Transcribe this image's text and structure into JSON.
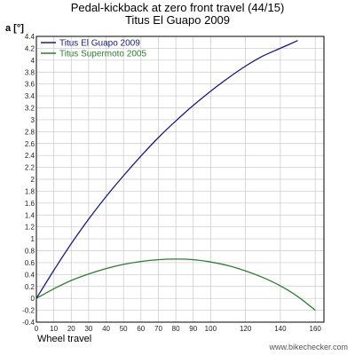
{
  "chart_data": {
    "type": "line",
    "title": "Pedal-kickback at zero front travel (44/15)",
    "subtitle": "Titus El Guapo 2009",
    "ylabel": "a [°]",
    "xlabel": "Wheel travel",
    "xlim": [
      0,
      165
    ],
    "ylim": [
      -0.4,
      4.4
    ],
    "xticks": [
      0,
      10,
      20,
      30,
      40,
      50,
      60,
      70,
      80,
      90,
      100,
      120,
      140,
      160
    ],
    "yticks": [
      -0.4,
      -0.2,
      0,
      0.2,
      0.4,
      0.6,
      0.8,
      1,
      1.2,
      1.4,
      1.6,
      1.8,
      2,
      2.2,
      2.4,
      2.6,
      2.8,
      3,
      3.2,
      3.4,
      3.6,
      3.8,
      4,
      4.2,
      4.4
    ],
    "grid": true,
    "legend_position": "top-left",
    "series": [
      {
        "name": "Titus El Guapo 2009",
        "color": "#1a1a80",
        "x": [
          0,
          10,
          20,
          30,
          40,
          50,
          60,
          70,
          80,
          90,
          100,
          110,
          120,
          130,
          140,
          150
        ],
        "y": [
          0.0,
          0.47,
          0.92,
          1.33,
          1.71,
          2.06,
          2.39,
          2.7,
          2.98,
          3.24,
          3.48,
          3.7,
          3.9,
          4.07,
          4.2,
          4.33
        ]
      },
      {
        "name": "Titus Supermoto 2005",
        "color": "#2e7d32",
        "x": [
          0,
          10,
          20,
          30,
          40,
          50,
          60,
          70,
          80,
          90,
          100,
          110,
          120,
          130,
          140,
          150,
          160
        ],
        "y": [
          0.0,
          0.16,
          0.3,
          0.41,
          0.5,
          0.57,
          0.62,
          0.65,
          0.66,
          0.65,
          0.61,
          0.55,
          0.46,
          0.35,
          0.21,
          0.03,
          -0.2
        ]
      }
    ]
  },
  "credit": "www.bikechecker.com"
}
